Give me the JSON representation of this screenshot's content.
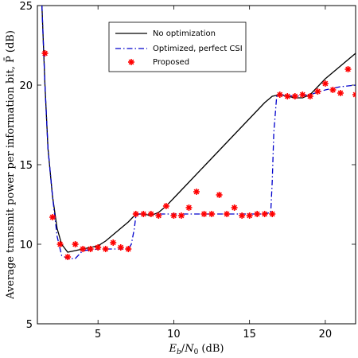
{
  "chart_data": {
    "type": "line",
    "xlabel": "E_b/N_0 (dB)",
    "ylabel": "Average transmit power per information bit, P̄ (dB)",
    "xlim": [
      1,
      22
    ],
    "ylim": [
      5,
      25
    ],
    "x_ticks": [
      5,
      10,
      15,
      20
    ],
    "y_ticks": [
      5,
      10,
      15,
      20,
      25
    ],
    "grid": false,
    "legend_position": "top-center",
    "series": [
      {
        "name": "No optimization",
        "style": "solid",
        "color": "#000000",
        "x": [
          1.3,
          1.5,
          1.7,
          2.0,
          2.3,
          2.6,
          3.0,
          3.5,
          4.0,
          4.5,
          5.0,
          5.5,
          6.0,
          6.5,
          7.0,
          7.3,
          7.6,
          8.0,
          8.5,
          9.0,
          9.5,
          10,
          11,
          12,
          13,
          14,
          15,
          16,
          16.5,
          17,
          17.5,
          18,
          18.5,
          19,
          19.5,
          20,
          21,
          22
        ],
        "y": [
          25,
          20,
          16,
          13,
          11,
          10,
          9.5,
          9.6,
          9.7,
          9.8,
          9.9,
          10.2,
          10.6,
          11.0,
          11.4,
          11.7,
          11.9,
          11.9,
          11.8,
          12.0,
          12.4,
          12.9,
          13.9,
          14.9,
          15.9,
          16.9,
          17.9,
          18.9,
          19.3,
          19.4,
          19.3,
          19.2,
          19.2,
          19.4,
          19.9,
          20.4,
          21.2,
          22.0
        ]
      },
      {
        "name": "Optimized, perfect CSI",
        "style": "dashdot",
        "color": "#0000cc",
        "x": [
          1.3,
          1.5,
          1.7,
          2.0,
          2.3,
          2.6,
          3.0,
          3.5,
          4.0,
          5.0,
          6.0,
          7.0,
          7.2,
          7.4,
          7.5,
          7.7,
          8.0,
          9.0,
          10,
          11,
          12,
          13,
          14,
          15,
          16,
          16.4,
          16.5,
          16.6,
          16.8,
          17.0,
          18.0,
          19.0,
          20.0,
          21.0,
          22.0
        ],
        "y": [
          25,
          20,
          16,
          13,
          10.5,
          9.3,
          9.1,
          9.1,
          9.6,
          9.7,
          9.7,
          9.7,
          10.0,
          11.0,
          11.8,
          11.9,
          11.9,
          11.9,
          11.9,
          11.9,
          11.9,
          11.9,
          11.9,
          11.9,
          11.9,
          12.0,
          14.0,
          17.0,
          19.4,
          19.4,
          19.3,
          19.4,
          19.7,
          19.9,
          20.0
        ]
      },
      {
        "name": "Proposed",
        "style": "markers",
        "color": "#ff0000",
        "x": [
          1.5,
          2.0,
          2.5,
          3.0,
          3.5,
          4.0,
          4.5,
          5.0,
          5.5,
          6.0,
          6.5,
          7.0,
          7.5,
          8.0,
          8.5,
          9.0,
          9.5,
          10.0,
          10.5,
          11.0,
          11.5,
          12.0,
          12.5,
          13.0,
          13.5,
          14.0,
          14.5,
          15.0,
          15.5,
          16.0,
          16.5,
          17.0,
          17.5,
          18.0,
          18.5,
          19.0,
          19.5,
          20.0,
          20.5,
          21.0,
          21.5,
          22.0
        ],
        "y": [
          22.0,
          11.7,
          10.0,
          9.2,
          10.0,
          9.7,
          9.7,
          9.8,
          9.7,
          10.1,
          9.8,
          9.7,
          11.9,
          11.9,
          11.9,
          11.8,
          12.4,
          11.8,
          11.8,
          12.3,
          13.3,
          11.9,
          11.9,
          13.1,
          11.9,
          12.3,
          11.8,
          11.8,
          11.9,
          11.9,
          11.9,
          19.4,
          19.3,
          19.3,
          19.4,
          19.3,
          19.6,
          20.1,
          19.7,
          19.5,
          21.0,
          19.4
        ]
      }
    ]
  }
}
